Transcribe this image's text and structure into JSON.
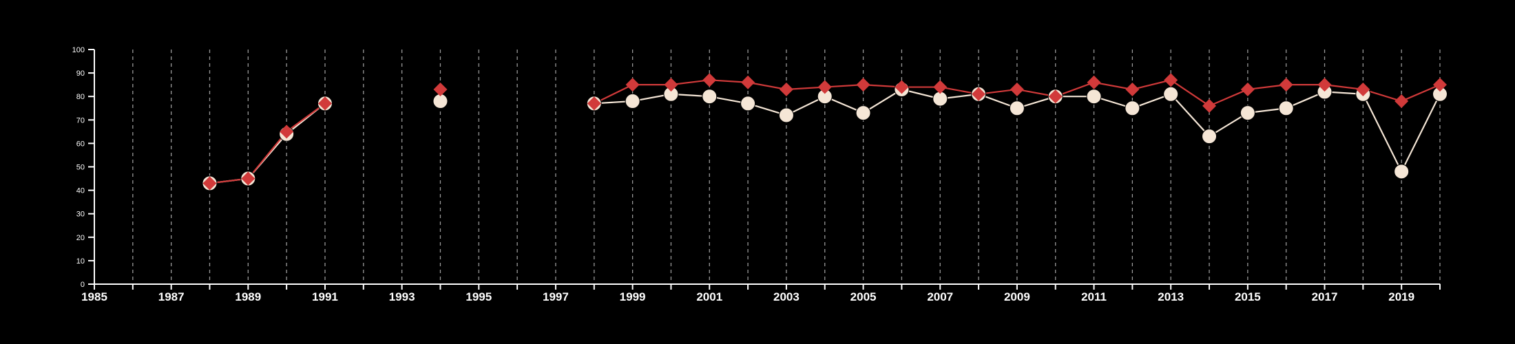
{
  "chart_data": {
    "type": "line",
    "title": "",
    "xlabel": "",
    "ylabel": "",
    "xlim": [
      1985,
      2020
    ],
    "ylim": [
      0,
      100
    ],
    "x_ticks": [
      1985,
      1987,
      1989,
      1991,
      1993,
      1995,
      1997,
      1999,
      2001,
      2003,
      2005,
      2007,
      2009,
      2011,
      2013,
      2015,
      2017,
      2019
    ],
    "x_tick_labels": [
      "1985",
      "1987",
      "1989",
      "1991",
      "1993",
      "1995",
      "1997",
      "1999",
      "2001",
      "2003",
      "2005",
      "2007",
      "2009",
      "2011",
      "2013",
      "2015",
      "2017",
      "2019"
    ],
    "y_ticks": [
      0,
      10,
      20,
      30,
      40,
      50,
      60,
      70,
      80,
      90,
      100
    ],
    "y_tick_labels": [
      "0",
      "10",
      "20",
      "30",
      "40",
      "50",
      "60",
      "70",
      "80",
      "90",
      "100"
    ],
    "vertical_grid": "dashed, every year",
    "colors": {
      "background": "#000000",
      "axis": "#ffffff",
      "grid": "#9a9a9a",
      "series_cream": "#f5e6d6",
      "series_red": "#d13a3a"
    },
    "series": [
      {
        "marker": "circle",
        "color": "#f5e6d6",
        "x": [
          1988,
          1989,
          1990,
          1991,
          1994,
          1998,
          1999,
          2000,
          2001,
          2002,
          2003,
          2004,
          2005,
          2006,
          2007,
          2008,
          2009,
          2010,
          2011,
          2012,
          2013,
          2014,
          2015,
          2016,
          2017,
          2018,
          2019,
          2020
        ],
        "values": [
          43,
          45,
          64,
          77,
          78,
          77,
          78,
          81,
          80,
          77,
          72,
          80,
          73,
          83,
          79,
          81,
          75,
          80,
          80,
          75,
          81,
          63,
          73,
          75,
          82,
          81,
          48,
          81
        ]
      },
      {
        "marker": "diamond",
        "color": "#d13a3a",
        "x": [
          1988,
          1989,
          1990,
          1991,
          1994,
          1998,
          1999,
          2000,
          2001,
          2002,
          2003,
          2004,
          2005,
          2006,
          2007,
          2008,
          2009,
          2010,
          2011,
          2012,
          2013,
          2014,
          2015,
          2016,
          2017,
          2018,
          2019,
          2020
        ],
        "values": [
          43,
          45,
          65,
          77,
          83,
          77,
          85,
          85,
          87,
          86,
          83,
          84,
          85,
          84,
          84,
          81,
          83,
          80,
          86,
          83,
          87,
          76,
          83,
          85,
          85,
          83,
          78,
          85
        ]
      }
    ]
  }
}
